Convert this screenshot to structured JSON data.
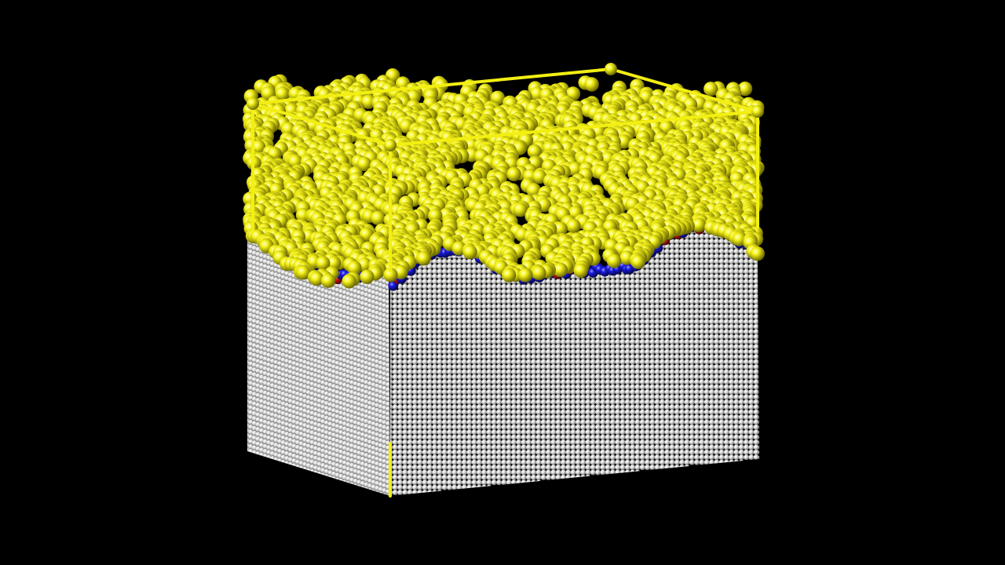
{
  "scene": {
    "description_visible_text": "",
    "background_color": "#000000",
    "colors": {
      "liquid_atoms": "#f2ef12",
      "liquid_highlight": "#ffffb0",
      "liquid_shadow": "#8a8600",
      "substrate_atoms": "#e9e9e9",
      "substrate_shadow": "#7c7c7c",
      "interface_atoms_blue": "#1010d0",
      "interface_atoms_red": "#d01010",
      "box_frame": "#f2ef12"
    },
    "layers": [
      {
        "name": "liquid",
        "color_key": "liquid_atoms"
      },
      {
        "name": "interface",
        "color_key": "interface_atoms_blue"
      },
      {
        "name": "substrate",
        "color_key": "substrate_atoms"
      }
    ]
  }
}
